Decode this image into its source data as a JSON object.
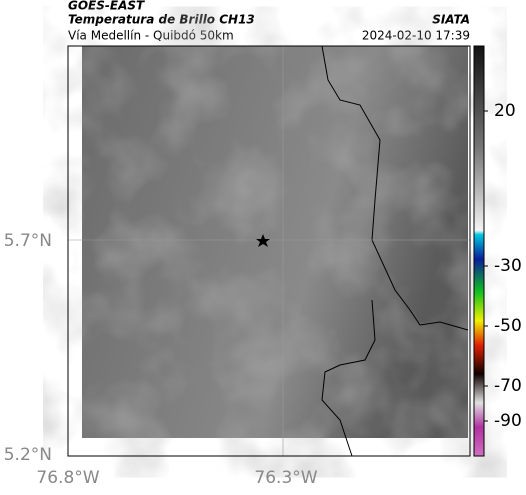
{
  "header": {
    "source": "GOES-EAST",
    "product": "Temperatura de Brillo CH13",
    "region": "Vía Medellín - Quibdó 50km",
    "org": "SIATA",
    "datetime": "2024-02-10 17:39"
  },
  "map": {
    "lat_labels": [
      "5.7°N",
      "5.2°N"
    ],
    "lon_labels": [
      "76.8°W",
      "76.3°W"
    ]
  },
  "colorbar": {
    "ticks": [
      20,
      -30,
      -50,
      -70,
      -90
    ]
  }
}
